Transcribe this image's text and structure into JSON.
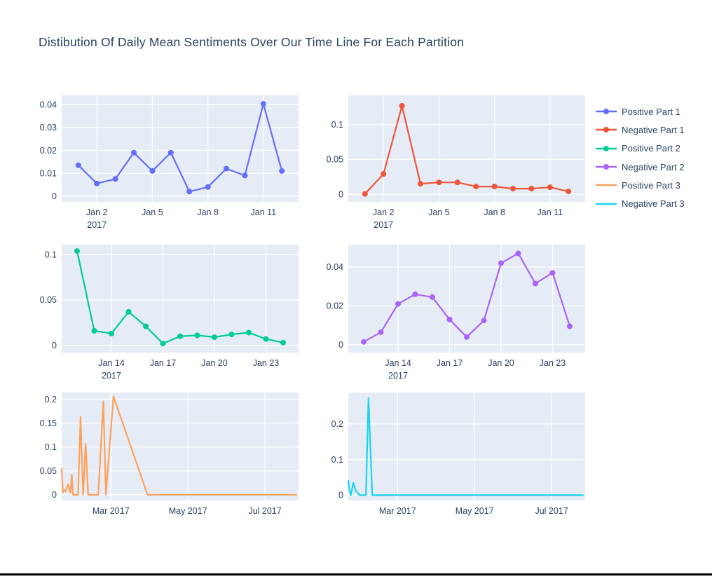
{
  "page": {
    "title": "Distibution Of Daily Mean Sentiments Over Our Time Line For Each Partition"
  },
  "colors": {
    "text": "#2a3f5f",
    "plot_bg": "#e5ecf6",
    "grid": "#ffffff",
    "page_bg": "#ffffff",
    "bottom_bar": "#000000"
  },
  "legend": {
    "items": [
      {
        "label": "Positive Part 1",
        "color": "#636efa",
        "marker": true
      },
      {
        "label": "Negative Part 1",
        "color": "#ef553b",
        "marker": true
      },
      {
        "label": "Positive Part 2",
        "color": "#00cc96",
        "marker": true
      },
      {
        "label": "Negative Part 2",
        "color": "#ab63fa",
        "marker": true
      },
      {
        "label": "Positive Part 3",
        "color": "#ffa15a",
        "marker": false
      },
      {
        "label": "Negative Part 3",
        "color": "#19d3f3",
        "marker": false
      }
    ]
  },
  "chart_data": [
    {
      "type": "line",
      "name": "Positive Part 1",
      "color": "#636efa",
      "markers": true,
      "row": 1,
      "col": 1,
      "x": [
        1,
        2,
        3,
        4,
        5,
        6,
        7,
        8,
        9,
        10,
        11,
        12
      ],
      "y": [
        0.0135,
        0.0055,
        0.0075,
        0.019,
        0.011,
        0.019,
        0.002,
        0.004,
        0.012,
        0.009,
        0.0403,
        0.011
      ],
      "xlim": [
        0.1,
        12.9
      ],
      "ylim": [
        -0.0025,
        0.044
      ],
      "xticks": {
        "values": [
          2,
          5,
          8,
          11
        ],
        "labels": [
          "Jan 2",
          "Jan 5",
          "Jan 8",
          "Jan 11"
        ],
        "year": "2017"
      },
      "yticks": {
        "values": [
          0,
          0.01,
          0.02,
          0.03,
          0.04
        ],
        "labels": [
          "0",
          "0.01",
          "0.02",
          "0.03",
          "0.04"
        ]
      }
    },
    {
      "type": "line",
      "name": "Negative Part 1",
      "color": "#ef553b",
      "markers": true,
      "row": 1,
      "col": 2,
      "x": [
        1,
        2,
        3,
        4,
        5,
        6,
        7,
        8,
        9,
        10,
        11,
        12
      ],
      "y": [
        0.0005,
        0.029,
        0.127,
        0.015,
        0.017,
        0.017,
        0.011,
        0.011,
        0.008,
        0.008,
        0.01,
        0.004
      ],
      "xlim": [
        0.1,
        12.9
      ],
      "ylim": [
        -0.011,
        0.142
      ],
      "xticks": {
        "values": [
          2,
          5,
          8,
          11
        ],
        "labels": [
          "Jan 2",
          "Jan 5",
          "Jan 8",
          "Jan 11"
        ],
        "year": "2017"
      },
      "yticks": {
        "values": [
          0,
          0.05,
          0.1
        ],
        "labels": [
          "0",
          "0.05",
          "0.1"
        ]
      }
    },
    {
      "type": "line",
      "name": "Positive Part 2",
      "color": "#00cc96",
      "markers": true,
      "row": 2,
      "col": 1,
      "x": [
        12,
        13,
        14,
        15,
        16,
        17,
        18,
        19,
        20,
        21,
        22,
        23,
        24
      ],
      "y": [
        0.104,
        0.016,
        0.013,
        0.037,
        0.021,
        0.002,
        0.01,
        0.011,
        0.009,
        0.012,
        0.014,
        0.007,
        0.003
      ],
      "xlim": [
        11.1,
        24.9
      ],
      "ylim": [
        -0.008,
        0.111
      ],
      "xticks": {
        "values": [
          14,
          17,
          20,
          23
        ],
        "labels": [
          "Jan 14",
          "Jan 17",
          "Jan 20",
          "Jan 23"
        ],
        "year": "2017"
      },
      "yticks": {
        "values": [
          0,
          0.05,
          0.1
        ],
        "labels": [
          "0",
          "0.05",
          "0.1"
        ]
      }
    },
    {
      "type": "line",
      "name": "Negative Part 2",
      "color": "#ab63fa",
      "markers": true,
      "row": 2,
      "col": 2,
      "x": [
        12,
        13,
        14,
        15,
        16,
        17,
        18,
        19,
        20,
        21,
        22,
        23,
        24
      ],
      "y": [
        0.0015,
        0.0065,
        0.021,
        0.026,
        0.0245,
        0.013,
        0.004,
        0.0125,
        0.042,
        0.047,
        0.0315,
        0.037,
        0.0095
      ],
      "xlim": [
        11.1,
        24.9
      ],
      "ylim": [
        -0.004,
        0.0515
      ],
      "xticks": {
        "values": [
          14,
          17,
          20,
          23
        ],
        "labels": [
          "Jan 14",
          "Jan 17",
          "Jan 20",
          "Jan 23"
        ],
        "year": "2017"
      },
      "yticks": {
        "values": [
          0,
          0.02,
          0.04
        ],
        "labels": [
          "0",
          "0.02",
          "0.04"
        ]
      }
    },
    {
      "type": "line",
      "name": "Positive Part 3",
      "color": "#ffa15a",
      "markers": false,
      "row": 3,
      "col": 1,
      "x": [
        21,
        22,
        23,
        24,
        25,
        26,
        27,
        28,
        29,
        30,
        31,
        34,
        36,
        38,
        40,
        42,
        44,
        50,
        54,
        56,
        62,
        89,
        207
      ],
      "y": [
        0.055,
        0.005,
        0.01,
        0.007,
        0.013,
        0.022,
        0.012,
        0.004,
        0.042,
        0,
        0,
        0,
        0.163,
        0,
        0.107,
        0,
        0,
        0,
        0.196,
        0,
        0.206,
        0,
        0
      ],
      "xlim": [
        21,
        208.6
      ],
      "ylim": [
        -0.012,
        0.214
      ],
      "xticks": {
        "values": [
          60,
          121,
          182
        ],
        "labels": [
          "Mar 2017",
          "May 2017",
          "Jul 2017"
        ],
        "year": null
      },
      "yticks": {
        "values": [
          0,
          0.05,
          0.1,
          0.15,
          0.2
        ],
        "labels": [
          "0",
          "0.05",
          "0.1",
          "0.15",
          "0.2"
        ]
      }
    },
    {
      "type": "line",
      "name": "Negative Part 3",
      "color": "#19d3f3",
      "markers": false,
      "row": 3,
      "col": 2,
      "x": [
        21,
        22,
        23,
        25,
        27,
        28,
        30,
        31,
        35,
        37,
        40,
        207
      ],
      "y": [
        0.04,
        0.013,
        0,
        0.035,
        0.012,
        0.008,
        0,
        0,
        0,
        0.272,
        0,
        0
      ],
      "xlim": [
        21,
        208.6
      ],
      "ylim": [
        -0.015,
        0.288
      ],
      "xticks": {
        "values": [
          60,
          121,
          182
        ],
        "labels": [
          "Mar 2017",
          "May 2017",
          "Jul 2017"
        ],
        "year": null
      },
      "yticks": {
        "values": [
          0,
          0.1,
          0.2
        ],
        "labels": [
          "0",
          "0.1",
          "0.2"
        ]
      }
    }
  ]
}
